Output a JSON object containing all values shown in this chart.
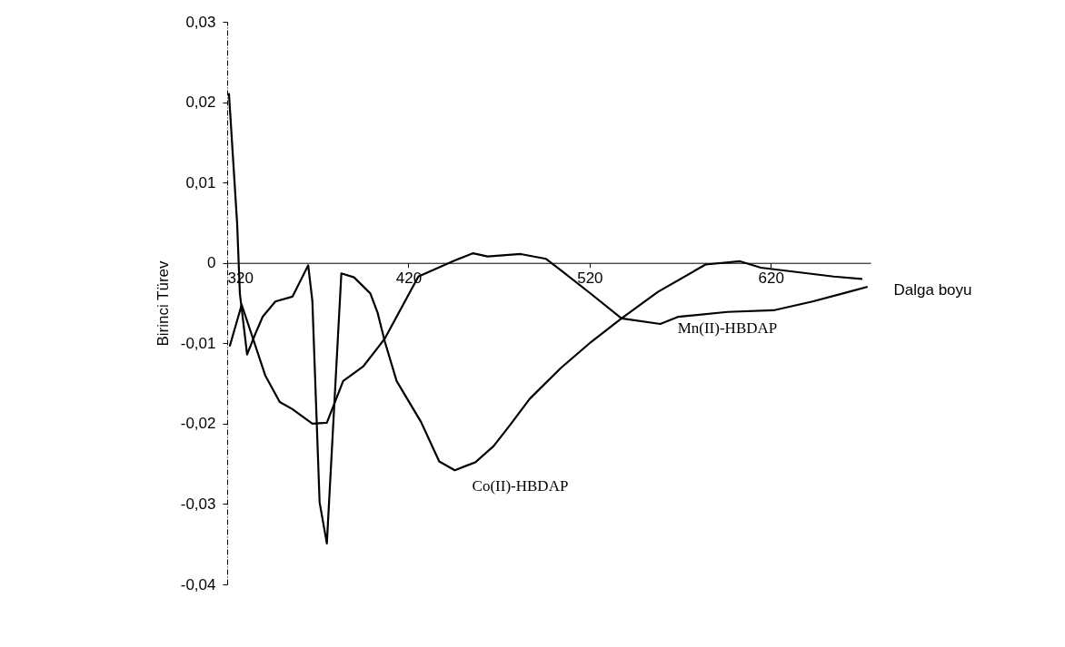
{
  "chart_data": {
    "type": "line",
    "xlabel": "Dalga boyu",
    "ylabel": "Birinci Türev",
    "xlim": [
      320,
      675
    ],
    "xticks": [
      320,
      420,
      520,
      620
    ],
    "ylim": [
      -0.04,
      0.03
    ],
    "yticks": [
      {
        "value": -0.04,
        "label": "-0,04"
      },
      {
        "value": -0.03,
        "label": "-0,03"
      },
      {
        "value": -0.02,
        "label": "-0,02"
      },
      {
        "value": -0.01,
        "label": "-0,01"
      },
      {
        "value": 0,
        "label": "0"
      },
      {
        "value": 0.01,
        "label": "0,01"
      },
      {
        "value": 0.02,
        "label": "0,02"
      },
      {
        "value": 0.03,
        "label": "0,03"
      }
    ],
    "grid": false,
    "legend": false,
    "marker": "none",
    "line_style": "solid",
    "series": [
      {
        "name": "Co(II)-HBDAP",
        "color": "#000000",
        "x": [
          321,
          325.5,
          327,
          331,
          335.6,
          339.6,
          346.6,
          356,
          364.7,
          367,
          371,
          375,
          378,
          383,
          390,
          399,
          403,
          407,
          413.5,
          427,
          437,
          445.6,
          457,
          467,
          476,
          487,
          504,
          521,
          537.6,
          557.7,
          584,
          603,
          614.5,
          654.7,
          670
        ],
        "values": [
          0.021,
          0.0049,
          -0.0038,
          -0.0114,
          -0.0088,
          -0.0067,
          -0.0048,
          -0.0042,
          -0.0003,
          -0.0047,
          -0.0298,
          -0.0349,
          -0.0223,
          -0.0013,
          -0.0018,
          -0.0038,
          -0.0062,
          -0.0098,
          -0.0147,
          -0.0198,
          -0.0247,
          -0.0258,
          -0.0248,
          -0.0228,
          -0.0202,
          -0.0169,
          -0.0131,
          -0.0098,
          -0.0069,
          -0.0036,
          -0.0002,
          0.0002,
          -0.0006,
          -0.0017,
          -0.002
        ]
      },
      {
        "name": "Mn(II)-HBDAP",
        "color": "#000000",
        "x": [
          321.5,
          328,
          341,
          349,
          356,
          367,
          375,
          380,
          384,
          395,
          404,
          407,
          425.5,
          445.6,
          455.7,
          463.7,
          482,
          496,
          504,
          521,
          537.6,
          559,
          569,
          596,
          621.5,
          643,
          663,
          673
        ],
        "values": [
          -0.0103,
          -0.0052,
          -0.014,
          -0.0173,
          -0.0182,
          -0.02,
          -0.0199,
          -0.017,
          -0.0147,
          -0.0129,
          -0.0103,
          -0.0094,
          -0.0017,
          0.0003,
          0.0012,
          0.0008,
          0.0011,
          0.0005,
          -0.0009,
          -0.0039,
          -0.0069,
          -0.0076,
          -0.0067,
          -0.0061,
          -0.0059,
          -0.0048,
          -0.0036,
          -0.003
        ]
      }
    ]
  }
}
